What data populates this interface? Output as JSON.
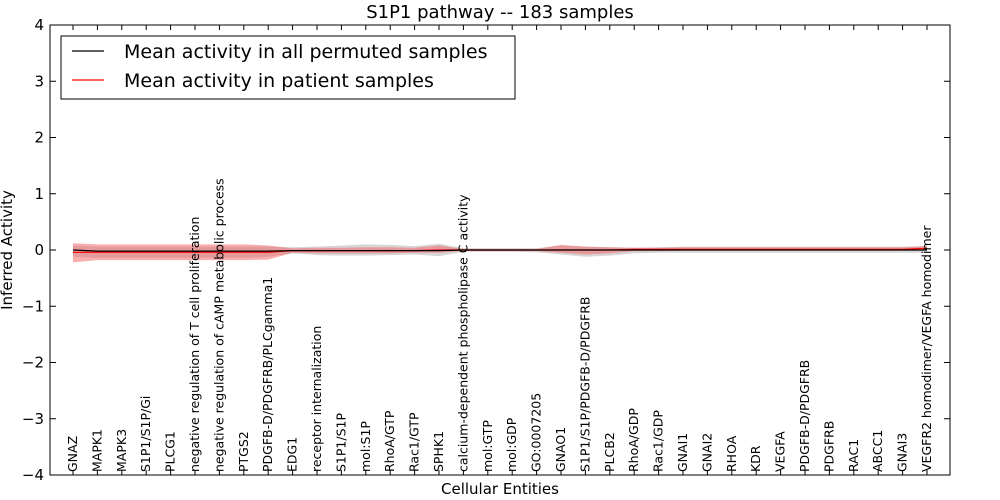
{
  "chart_data": {
    "type": "line",
    "title": "S1P1 pathway -- 183 samples",
    "xlabel": "Cellular Entities",
    "ylabel": "Inferred Activity",
    "ylim": [
      -4,
      4
    ],
    "yticks": [
      -4,
      -3,
      -2,
      -1,
      0,
      1,
      2,
      3,
      4
    ],
    "ytick_labels": [
      "−4",
      "−3",
      "−2",
      "−1",
      "0",
      "1",
      "2",
      "3",
      "4"
    ],
    "legend_position": "upper-left",
    "colors": {
      "permuted": "#000000",
      "patient": "#ff0000",
      "permuted_band": "#c8c8c8",
      "patient_band": "#f26b6b"
    },
    "categories": [
      "GNAZ",
      "MAPK1",
      "MAPK3",
      "S1P1/S1P/Gi",
      "PLCG1",
      "negative regulation of T cell proliferation",
      "negative regulation of cAMP metabolic process",
      "PTGS2",
      "PDGFB-D/PDGFRB/PLCgamma1",
      "EDG1",
      "receptor internalization",
      "S1P1/S1P",
      "mol:S1P",
      "RhoA/GTP",
      "Rac1/GTP",
      "SPHK1",
      "calcium-dependent phospholipase C activity",
      "mol:GTP",
      "mol:GDP",
      "GO:0007205",
      "GNAO1",
      "S1P1/S1P/PDGFB-D/PDGFRB",
      "PLCB2",
      "RhoA/GDP",
      "Rac1/GDP",
      "GNAI1",
      "GNAI2",
      "RHOA",
      "KDR",
      "VEGFA",
      "PDGFB-D/PDGFRB",
      "PDGFRB",
      "RAC1",
      "ABCC1",
      "GNAI3",
      "VEGFR2 homodimer/VEGFA homodimer"
    ],
    "series": [
      {
        "name": "Mean activity in all permuted samples",
        "values": [
          0.0,
          -0.02,
          -0.02,
          -0.02,
          -0.02,
          -0.02,
          -0.02,
          -0.02,
          -0.02,
          -0.01,
          -0.01,
          -0.01,
          -0.01,
          -0.01,
          -0.01,
          -0.01,
          0.0,
          0.0,
          0.0,
          0.0,
          0.0,
          0.0,
          0.0,
          0.0,
          0.0,
          0.0,
          0.0,
          0.0,
          0.0,
          0.0,
          0.0,
          0.0,
          0.0,
          0.0,
          0.0,
          0.0
        ],
        "band_upper": [
          0.08,
          0.06,
          0.06,
          0.06,
          0.06,
          0.06,
          0.06,
          0.06,
          0.06,
          0.05,
          0.06,
          0.08,
          0.1,
          0.09,
          0.07,
          0.11,
          0.03,
          0.03,
          0.03,
          0.03,
          0.08,
          0.06,
          0.05,
          0.04,
          0.05,
          0.06,
          0.06,
          0.06,
          0.06,
          0.06,
          0.06,
          0.06,
          0.06,
          0.06,
          0.06,
          0.07
        ],
        "band_lower": [
          -0.12,
          -0.14,
          -0.14,
          -0.14,
          -0.14,
          -0.14,
          -0.14,
          -0.14,
          -0.12,
          -0.06,
          -0.09,
          -0.1,
          -0.1,
          -0.09,
          -0.08,
          -0.11,
          -0.03,
          -0.03,
          -0.03,
          -0.04,
          -0.08,
          -0.12,
          -0.1,
          -0.06,
          -0.05,
          -0.05,
          -0.05,
          -0.05,
          -0.05,
          -0.05,
          -0.05,
          -0.05,
          -0.05,
          -0.05,
          -0.05,
          -0.05
        ]
      },
      {
        "name": "Mean activity in patient samples",
        "values": [
          -0.04,
          -0.04,
          -0.04,
          -0.04,
          -0.04,
          -0.04,
          -0.04,
          -0.04,
          -0.04,
          -0.01,
          -0.01,
          -0.01,
          -0.01,
          -0.01,
          -0.01,
          0.0,
          0.0,
          0.0,
          0.0,
          0.0,
          0.0,
          0.0,
          0.0,
          0.01,
          0.01,
          0.01,
          0.01,
          0.01,
          0.01,
          0.01,
          0.01,
          0.01,
          0.01,
          0.01,
          0.01,
          0.03
        ],
        "band_upper": [
          0.12,
          0.1,
          0.1,
          0.1,
          0.1,
          0.1,
          0.1,
          0.1,
          0.08,
          0.03,
          0.04,
          0.04,
          0.05,
          0.05,
          0.04,
          0.08,
          0.02,
          0.02,
          0.02,
          0.02,
          0.09,
          0.06,
          0.05,
          0.04,
          0.04,
          0.05,
          0.05,
          0.05,
          0.05,
          0.05,
          0.05,
          0.05,
          0.05,
          0.05,
          0.05,
          0.07
        ],
        "band_lower": [
          -0.22,
          -0.18,
          -0.18,
          -0.18,
          -0.18,
          -0.18,
          -0.18,
          -0.18,
          -0.17,
          -0.05,
          -0.06,
          -0.06,
          -0.06,
          -0.06,
          -0.05,
          -0.05,
          -0.02,
          -0.02,
          -0.02,
          -0.02,
          -0.05,
          -0.08,
          -0.06,
          -0.02,
          -0.02,
          -0.01,
          -0.01,
          -0.01,
          -0.01,
          -0.01,
          -0.01,
          -0.01,
          -0.01,
          -0.01,
          -0.01,
          0.0
        ]
      }
    ]
  }
}
